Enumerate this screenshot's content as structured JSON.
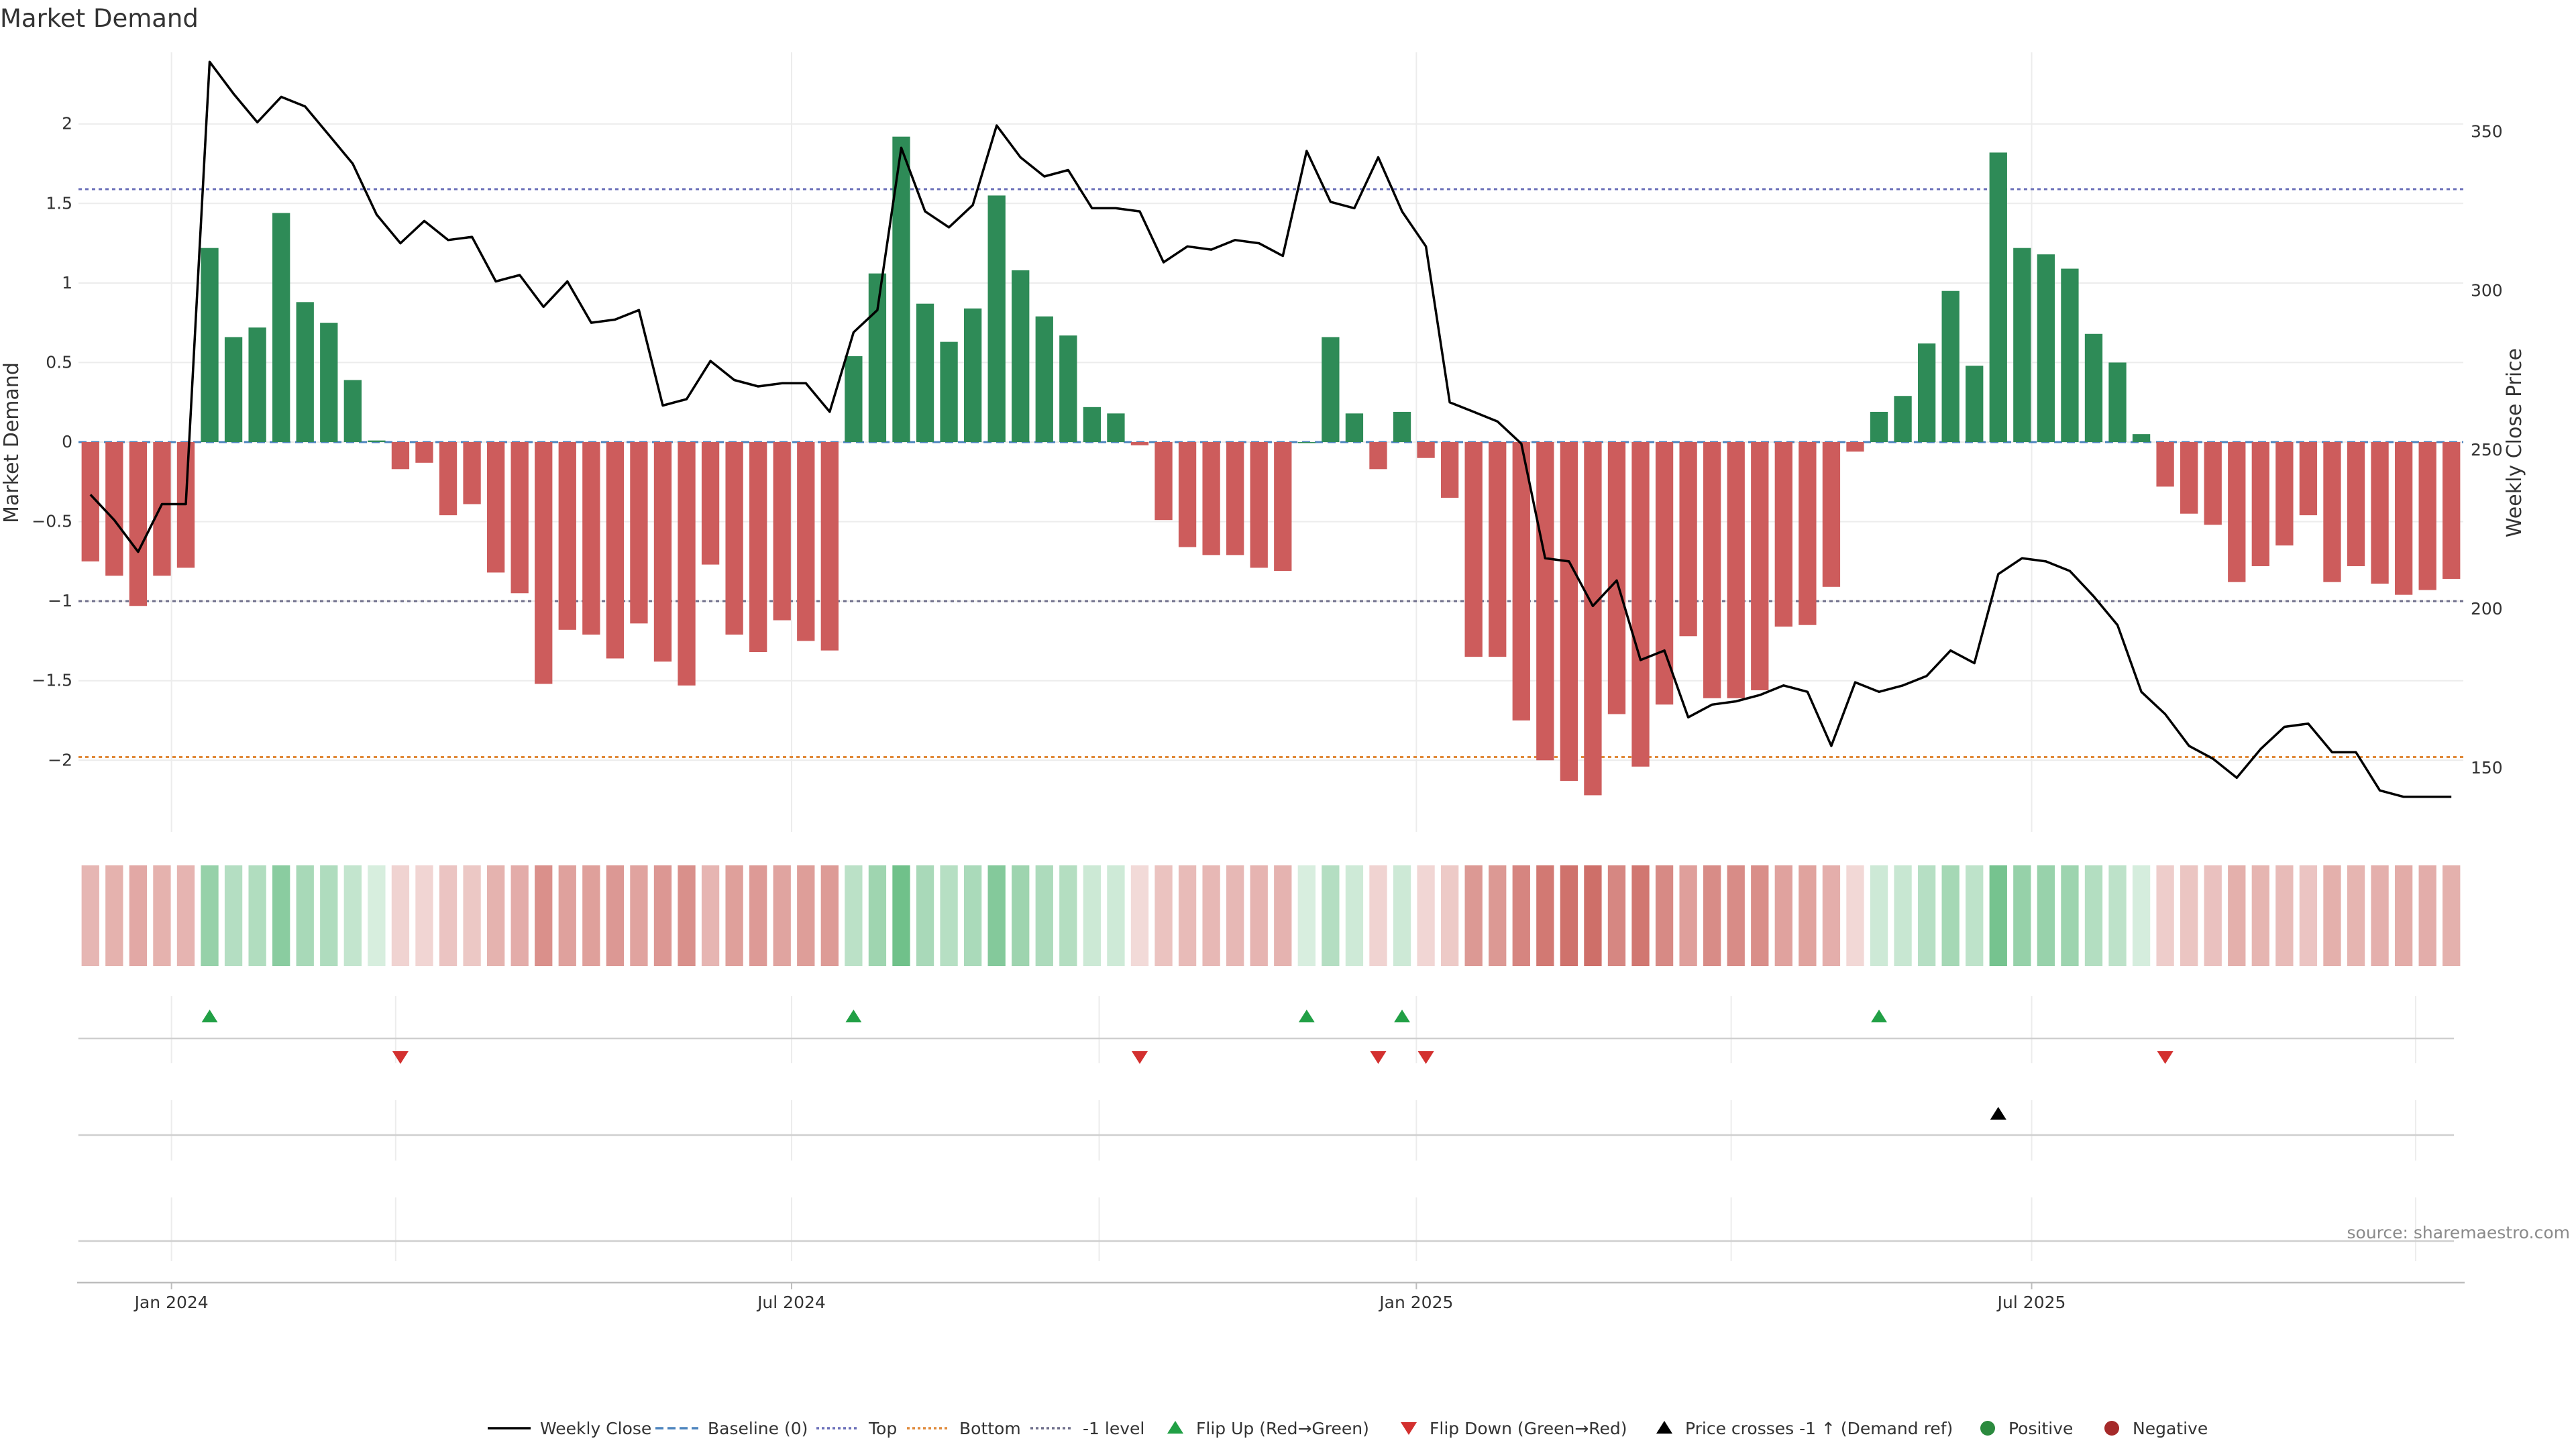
{
  "chart_data": {
    "type": "bar",
    "title": "Market Demand",
    "ylabel": "Market Demand",
    "y2label": "Weekly Close Price",
    "ylim": [
      -2.45,
      2.45
    ],
    "y2lim": [
      130,
      375
    ],
    "yticks": [
      2,
      1.5,
      1,
      0.5,
      0,
      -0.5,
      -1,
      -1.5,
      -2
    ],
    "yticklabels": [
      "2",
      "1.5",
      "1",
      "0.5",
      "0",
      "−0.5",
      "−1",
      "−1.5",
      "−2"
    ],
    "y2ticks": [
      350,
      300,
      250,
      200,
      150
    ],
    "y2ticklabels": [
      "350",
      "300",
      "250",
      "200",
      "150"
    ],
    "levels": {
      "top": 1.59,
      "bottom": -1.98,
      "minus_one": -1.0,
      "baseline": 0
    },
    "xticklabels": [
      "Jan 2024",
      "Jul 2024",
      "Jan 2025",
      "Jul 2025"
    ],
    "xtick_week_index": [
      3.4,
      29.4,
      55.6,
      81.4
    ],
    "series": [
      {
        "name": "Market Demand",
        "values": [
          -0.75,
          -0.84,
          -1.03,
          -0.84,
          -0.79,
          1.22,
          0.66,
          0.72,
          1.44,
          0.88,
          0.75,
          0.39,
          0.01,
          -0.17,
          -0.13,
          -0.46,
          -0.39,
          -0.82,
          -0.95,
          -1.52,
          -1.18,
          -1.21,
          -1.36,
          -1.14,
          -1.38,
          -1.53,
          -0.77,
          -1.21,
          -1.32,
          -1.12,
          -1.25,
          -1.31,
          0.54,
          1.06,
          1.92,
          0.87,
          0.63,
          0.84,
          1.55,
          1.08,
          0.79,
          0.67,
          0.22,
          0.18,
          -0.02,
          -0.49,
          -0.66,
          -0.71,
          -0.71,
          -0.79,
          -0.81,
          0.0,
          0.66,
          0.18,
          -0.17,
          0.19,
          -0.1,
          -0.35,
          -1.35,
          -1.35,
          -1.75,
          -2.0,
          -2.13,
          -2.22,
          -1.71,
          -2.04,
          -1.65,
          -1.22,
          -1.61,
          -1.61,
          -1.56,
          -1.16,
          -1.15,
          -0.91,
          -0.06,
          0.19,
          0.29,
          0.62,
          0.95,
          0.48,
          1.82,
          1.22,
          1.18,
          1.09,
          0.68,
          0.5,
          0.05,
          -0.28,
          -0.45,
          -0.52,
          -0.88,
          -0.78,
          -0.65,
          -0.46,
          -0.88,
          -0.78,
          -0.89,
          -0.96,
          -0.93,
          -0.86
        ]
      },
      {
        "name": "Weekly Close",
        "values": [
          236,
          228,
          218,
          233,
          233,
          372,
          362,
          353,
          361,
          358,
          349,
          340,
          324,
          315,
          322,
          316,
          317,
          303,
          305,
          295,
          303,
          290,
          291,
          294,
          264,
          266,
          278,
          272,
          270,
          271,
          271,
          262,
          287,
          294,
          345,
          325,
          320,
          327,
          352,
          342,
          336,
          338,
          326,
          326,
          325,
          309,
          314,
          313,
          316,
          315,
          311,
          344,
          328,
          326,
          342,
          325,
          314,
          265,
          262,
          259,
          252,
          216,
          215,
          201,
          209,
          184,
          187,
          166,
          170,
          171,
          173,
          176,
          174,
          157,
          177,
          174,
          176,
          179,
          187,
          183,
          211,
          216,
          215,
          212,
          204,
          195,
          174,
          167,
          157,
          153,
          147,
          156,
          163,
          164,
          155,
          155,
          143,
          141,
          141,
          141
        ]
      }
    ],
    "flip_up_weeks": [
      5,
      32,
      51,
      55,
      75
    ],
    "flip_down_weeks": [
      13,
      44,
      54,
      56,
      87
    ],
    "price_cross_weeks": [
      80
    ],
    "legend": [
      {
        "label": "Weekly Close",
        "kind": "line",
        "color": "#000000",
        "dash": ""
      },
      {
        "label": "Baseline (0)",
        "kind": "line",
        "color": "#4c84bd",
        "dash": "12,6"
      },
      {
        "label": "Top",
        "kind": "line",
        "color": "#6a6fb8",
        "dash": "4,4"
      },
      {
        "label": "Bottom",
        "kind": "line",
        "color": "#e08a3a",
        "dash": "4,4"
      },
      {
        "label": "-1 level",
        "kind": "line",
        "color": "#6e6e8a",
        "dash": "4,4"
      },
      {
        "label": "Flip Up (Red→Green)",
        "kind": "tri-up",
        "color": "#21a045"
      },
      {
        "label": "Flip Down (Green→Red)",
        "kind": "tri-down",
        "color": "#d3302f"
      },
      {
        "label": "Price crosses -1 ↑ (Demand ref)",
        "kind": "tri-up",
        "color": "#000000"
      },
      {
        "label": "Positive",
        "kind": "dot",
        "color": "#2b8a3e"
      },
      {
        "label": "Negative",
        "kind": "dot",
        "color": "#a52a2a"
      }
    ],
    "source": "source: sharemaestro.com"
  },
  "colors": {
    "positive_bar": "#2e8b57",
    "negative_bar": "#cd5c5c",
    "price_line": "#000000",
    "grid": "#ececec"
  }
}
